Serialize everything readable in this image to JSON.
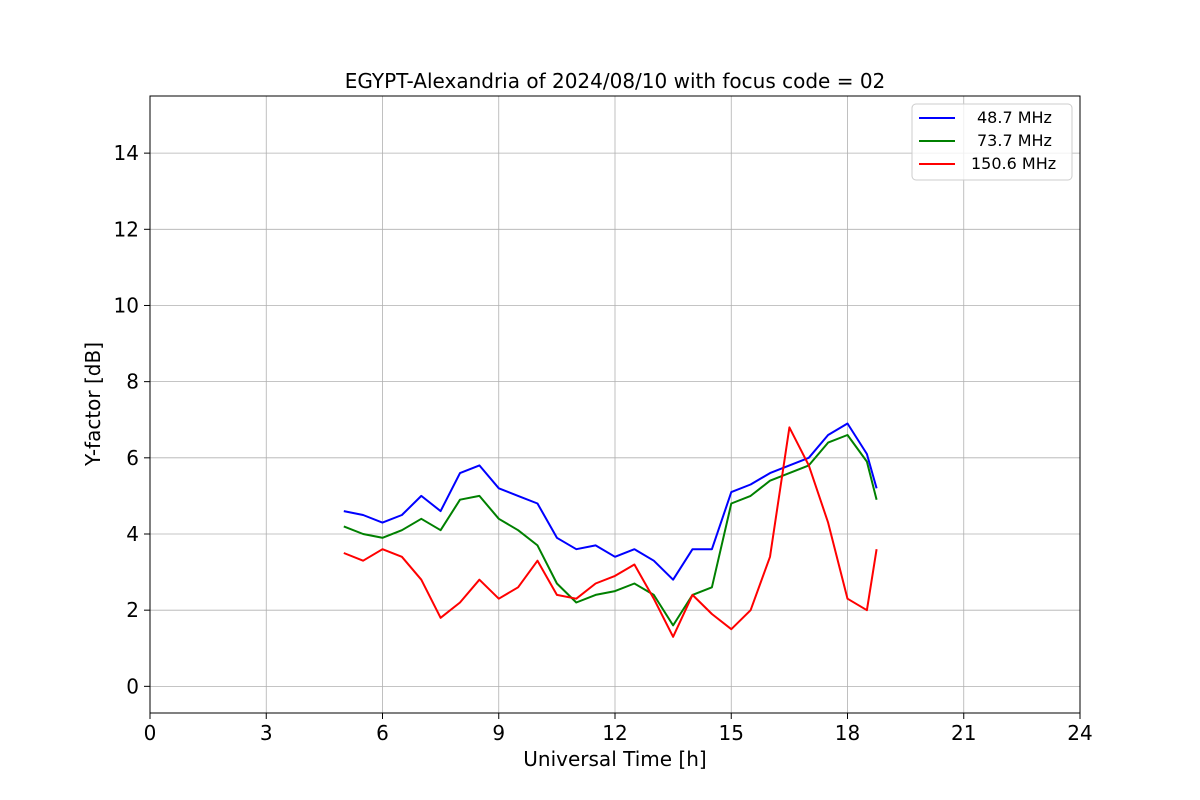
{
  "chart_data": {
    "type": "line",
    "title": "EGYPT-Alexandria of 2024/08/10 with focus code = 02",
    "xlabel": "Universal Time [h]",
    "ylabel": "Y-factor [dB]",
    "xlim": [
      0,
      24
    ],
    "ylim": [
      -0.7,
      15.5
    ],
    "xticks": [
      0,
      3,
      6,
      9,
      12,
      15,
      18,
      21,
      24
    ],
    "yticks": [
      0,
      2,
      4,
      6,
      8,
      10,
      12,
      14
    ],
    "xtick_labels": [
      "0",
      "3",
      "6",
      "9",
      "12",
      "15",
      "18",
      "21",
      "24"
    ],
    "ytick_labels": [
      "0",
      "2",
      "4",
      "6",
      "8",
      "10",
      "12",
      "14"
    ],
    "grid": true,
    "legend_position": "top-right",
    "series": [
      {
        "name": "48.7 MHz",
        "color": "#0000ff",
        "x": [
          5.0,
          5.5,
          6.0,
          6.5,
          7.0,
          7.5,
          8.0,
          8.5,
          9.0,
          9.5,
          10.0,
          10.5,
          11.0,
          11.5,
          12.0,
          12.5,
          13.0,
          13.5,
          14.0,
          14.5,
          15.0,
          15.5,
          16.0,
          16.5,
          17.0,
          17.5,
          18.0,
          18.5,
          18.75
        ],
        "y": [
          4.6,
          4.5,
          4.3,
          4.5,
          5.0,
          4.6,
          5.6,
          5.8,
          5.2,
          5.0,
          4.8,
          3.9,
          3.6,
          3.7,
          3.4,
          3.6,
          3.3,
          2.8,
          3.6,
          3.6,
          5.1,
          5.3,
          5.6,
          5.8,
          6.0,
          6.6,
          6.9,
          6.1,
          5.2
        ]
      },
      {
        "name": "73.7 MHz",
        "color": "#008000",
        "x": [
          5.0,
          5.5,
          6.0,
          6.5,
          7.0,
          7.5,
          8.0,
          8.5,
          9.0,
          9.5,
          10.0,
          10.5,
          11.0,
          11.5,
          12.0,
          12.5,
          13.0,
          13.5,
          14.0,
          14.5,
          15.0,
          15.5,
          16.0,
          16.5,
          17.0,
          17.5,
          18.0,
          18.5,
          18.75
        ],
        "y": [
          4.2,
          4.0,
          3.9,
          4.1,
          4.4,
          4.1,
          4.9,
          5.0,
          4.4,
          4.1,
          3.7,
          2.7,
          2.2,
          2.4,
          2.5,
          2.7,
          2.4,
          1.6,
          2.4,
          2.6,
          4.8,
          5.0,
          5.4,
          5.6,
          5.8,
          6.4,
          6.6,
          5.9,
          4.9
        ]
      },
      {
        "name": "150.6 MHz",
        "color": "#ff0000",
        "x": [
          5.0,
          5.5,
          6.0,
          6.5,
          7.0,
          7.5,
          8.0,
          8.5,
          9.0,
          9.5,
          10.0,
          10.5,
          11.0,
          11.5,
          12.0,
          12.5,
          13.0,
          13.5,
          14.0,
          14.5,
          15.0,
          15.5,
          16.0,
          16.5,
          17.0,
          17.5,
          18.0,
          18.5,
          18.75
        ],
        "y": [
          3.5,
          3.3,
          3.6,
          3.4,
          2.8,
          1.8,
          2.2,
          2.8,
          2.3,
          2.6,
          3.3,
          2.4,
          2.3,
          2.7,
          2.9,
          3.2,
          2.3,
          1.3,
          2.4,
          1.9,
          1.5,
          2.0,
          3.4,
          6.8,
          5.8,
          4.3,
          2.3,
          2.0,
          3.6
        ]
      }
    ]
  }
}
